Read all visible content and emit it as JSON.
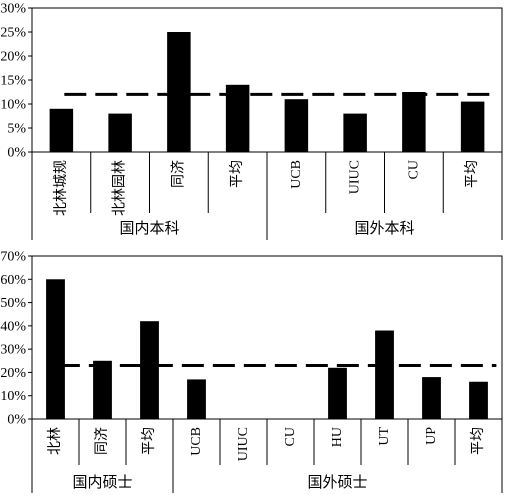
{
  "chart_data": [
    {
      "type": "bar",
      "categories": [
        "北林城规",
        "北林园林",
        "同济",
        "平均",
        "UCB",
        "UIUC",
        "CU",
        "平均"
      ],
      "values": [
        9,
        8,
        25,
        14,
        11,
        8,
        12.5,
        10.5
      ],
      "groups": [
        {
          "label": "国内本科",
          "count": 4
        },
        {
          "label": "国外本科",
          "count": 4
        }
      ],
      "reference_line": 12,
      "ylim": [
        0,
        30
      ],
      "yticks": [
        0,
        5,
        10,
        15,
        20,
        25,
        30
      ],
      "ytick_labels": [
        "0%",
        "5%",
        "10%",
        "15%",
        "20%",
        "25%",
        "30%"
      ],
      "bar_color": "#000000",
      "legend": "none",
      "grid": false
    },
    {
      "type": "bar",
      "categories": [
        "北林",
        "同济",
        "平均",
        "UCB",
        "UIUC",
        "CU",
        "HU",
        "UT",
        "UP",
        "平均"
      ],
      "values": [
        60,
        25,
        42,
        17,
        0,
        0,
        22,
        38,
        18,
        16
      ],
      "groups": [
        {
          "label": "国内硕士",
          "count": 3
        },
        {
          "label": "国外硕士",
          "count": 7
        }
      ],
      "reference_line": 23,
      "ylim": [
        0,
        70
      ],
      "yticks": [
        0,
        10,
        20,
        30,
        40,
        50,
        60,
        70
      ],
      "ytick_labels": [
        "0%",
        "10%",
        "20%",
        "30%",
        "40%",
        "50%",
        "60%",
        "70%"
      ],
      "bar_color": "#000000",
      "legend": "none",
      "grid": false
    }
  ]
}
